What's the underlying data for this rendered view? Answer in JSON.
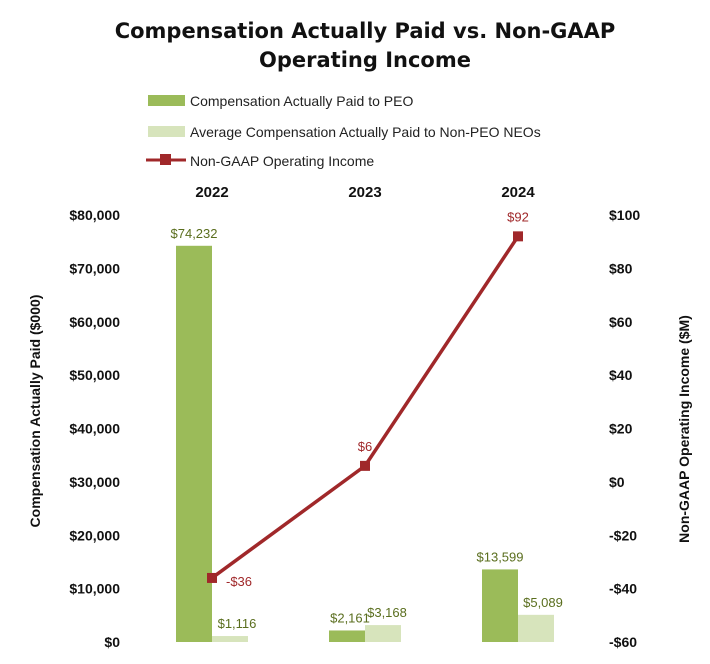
{
  "chart_data": {
    "type": "bar",
    "title": "Compensation Actually Paid vs. Non-GAAP Operating Income",
    "title_lines": [
      "Compensation Actually Paid vs. Non-GAAP",
      "Operating Income"
    ],
    "categories": [
      "2022",
      "2023",
      "2024"
    ],
    "series": [
      {
        "name": "Compensation Actually Paid to PEO",
        "type": "bar",
        "axis": "left",
        "color": "#9bbb59",
        "values": [
          74232,
          2161,
          13599
        ],
        "labels": [
          "$74,232",
          "$2,161",
          "$13,599"
        ]
      },
      {
        "name": "Average Compensation Actually Paid to Non-PEO NEOs",
        "type": "bar",
        "axis": "left",
        "color": "#d7e4bc",
        "values": [
          1116,
          3168,
          5089
        ],
        "labels": [
          "$1,116",
          "$3,168",
          "$5,089"
        ]
      },
      {
        "name": "Non-GAAP Operating Income",
        "type": "line",
        "axis": "right",
        "color": "#a0282a",
        "values": [
          -36,
          6,
          92
        ],
        "labels": [
          "-$36",
          "$6",
          "$92"
        ]
      }
    ],
    "ylabel": "Compensation Actually Paid ($000)",
    "y2label": "Non-GAAP Operating Income ($M)",
    "ylim": [
      0,
      80000
    ],
    "y2lim": [
      -60,
      100
    ],
    "yticks": [
      0,
      10000,
      20000,
      30000,
      40000,
      50000,
      60000,
      70000,
      80000
    ],
    "ytick_labels": [
      "$0",
      "$10,000",
      "$20,000",
      "$30,000",
      "$40,000",
      "$50,000",
      "$60,000",
      "$70,000",
      "$80,000"
    ],
    "y2ticks": [
      -60,
      -40,
      -20,
      0,
      20,
      40,
      60,
      80,
      100
    ],
    "y2tick_labels": [
      "-$60",
      "-$40",
      "-$20",
      "$0",
      "$20",
      "$40",
      "$60",
      "$80",
      "$100"
    ],
    "legend_position": "top-left",
    "grid": false,
    "label_colors": {
      "bars": "#5a6e1e",
      "line": "#a0282a"
    }
  }
}
